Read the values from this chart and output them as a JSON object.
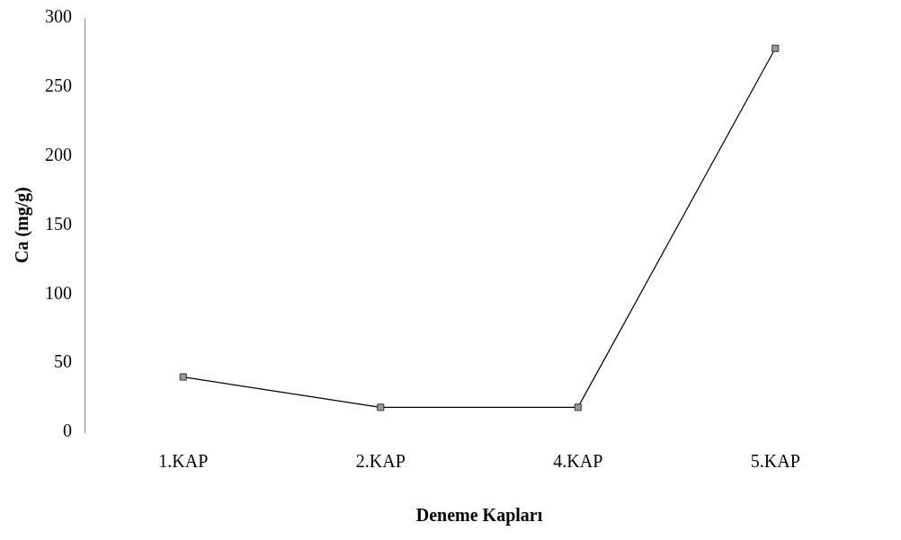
{
  "chart_data": {
    "type": "line",
    "xlabel": "Deneme Kapları",
    "ylabel": "Ca (mg/g)",
    "categories": [
      "1.KAP",
      "2.KAP",
      "4.KAP",
      "5.KAP"
    ],
    "series": [
      {
        "color": "#000000",
        "values": [
          40,
          18,
          18,
          278
        ]
      }
    ],
    "ylim": [
      0,
      300
    ],
    "yticks": [
      0,
      50,
      100,
      150,
      200,
      250,
      300
    ],
    "marker": "square",
    "grid": false,
    "legend": false
  }
}
